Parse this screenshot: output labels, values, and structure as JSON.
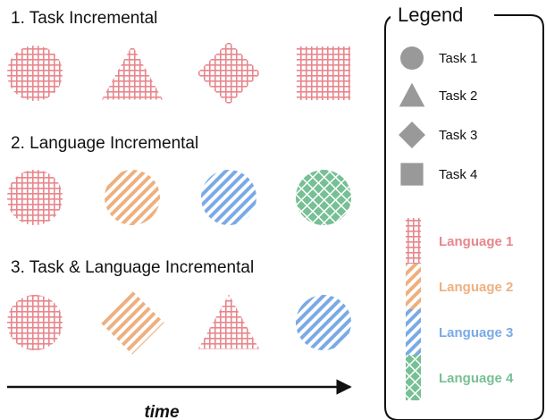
{
  "sections": [
    {
      "title": "1. Task Incremental",
      "items": [
        {
          "shape": "circle",
          "language": 1
        },
        {
          "shape": "triangle",
          "language": 1
        },
        {
          "shape": "diamond",
          "language": 1
        },
        {
          "shape": "square",
          "language": 1
        }
      ]
    },
    {
      "title": "2. Language Incremental",
      "items": [
        {
          "shape": "circle",
          "language": 1
        },
        {
          "shape": "circle",
          "language": 2
        },
        {
          "shape": "circle",
          "language": 3
        },
        {
          "shape": "circle",
          "language": 4
        }
      ]
    },
    {
      "title": "3. Task & Language Incremental",
      "items": [
        {
          "shape": "circle",
          "language": 1
        },
        {
          "shape": "diamond",
          "language": 2
        },
        {
          "shape": "triangle",
          "language": 1
        },
        {
          "shape": "circle",
          "language": 3
        }
      ]
    }
  ],
  "time_label": "time",
  "legend": {
    "title": "Legend",
    "tasks": [
      {
        "shape": "circle",
        "label": "Task 1"
      },
      {
        "shape": "triangle",
        "label": "Task 2"
      },
      {
        "shape": "diamond",
        "label": "Task 3"
      },
      {
        "shape": "square",
        "label": "Task 4"
      }
    ],
    "languages": [
      {
        "label": "Language 1",
        "pattern": "grid",
        "color": "#e8868c"
      },
      {
        "label": "Language 2",
        "pattern": "diagonal",
        "color": "#eeb07f"
      },
      {
        "label": "Language 3",
        "pattern": "diagonal",
        "color": "#7aaae6"
      },
      {
        "label": "Language 4",
        "pattern": "crosshatch",
        "color": "#77bf95"
      }
    ]
  },
  "colors": {
    "task_shape": "#999999",
    "text": "#111111"
  }
}
